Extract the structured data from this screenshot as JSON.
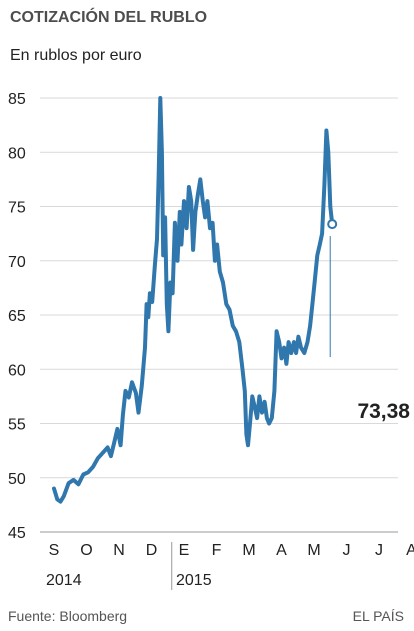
{
  "chart_data": {
    "type": "line",
    "title": "COTIZACIÓN DEL RUBLO",
    "subtitle": "En rublos por euro",
    "ylim": [
      45,
      85
    ],
    "yticks": [
      45,
      50,
      55,
      60,
      65,
      70,
      75,
      80,
      85
    ],
    "grid": true,
    "months": [
      "S",
      "O",
      "N",
      "D",
      "E",
      "F",
      "M",
      "A",
      "M",
      "J",
      "J",
      "A"
    ],
    "years": [
      "2014",
      "2015"
    ],
    "last_value_label": "73,38",
    "series": [
      {
        "color": "#2f77ad",
        "points": [
          [
            0.0,
            49.0
          ],
          [
            0.1,
            48.0
          ],
          [
            0.2,
            47.8
          ],
          [
            0.3,
            48.3
          ],
          [
            0.45,
            49.5
          ],
          [
            0.6,
            49.8
          ],
          [
            0.75,
            49.4
          ],
          [
            0.9,
            50.3
          ],
          [
            1.05,
            50.5
          ],
          [
            1.2,
            51.0
          ],
          [
            1.35,
            51.8
          ],
          [
            1.5,
            52.3
          ],
          [
            1.65,
            52.8
          ],
          [
            1.75,
            52.0
          ],
          [
            1.85,
            53.2
          ],
          [
            1.95,
            54.5
          ],
          [
            2.05,
            53.0
          ],
          [
            2.12,
            55.8
          ],
          [
            2.2,
            58.0
          ],
          [
            2.3,
            57.4
          ],
          [
            2.4,
            58.8
          ],
          [
            2.52,
            57.8
          ],
          [
            2.6,
            56.0
          ],
          [
            2.7,
            58.5
          ],
          [
            2.8,
            62.0
          ],
          [
            2.85,
            66.0
          ],
          [
            2.9,
            64.8
          ],
          [
            2.95,
            67.0
          ],
          [
            3.02,
            66.2
          ],
          [
            3.1,
            69.5
          ],
          [
            3.17,
            72.0
          ],
          [
            3.22,
            78.0
          ],
          [
            3.27,
            85.0
          ],
          [
            3.32,
            80.0
          ],
          [
            3.36,
            70.5
          ],
          [
            3.42,
            74.0
          ],
          [
            3.47,
            66.0
          ],
          [
            3.52,
            63.5
          ],
          [
            3.58,
            68.0
          ],
          [
            3.65,
            67.0
          ],
          [
            3.72,
            73.5
          ],
          [
            3.8,
            70.0
          ],
          [
            3.87,
            74.5
          ],
          [
            3.92,
            71.5
          ],
          [
            4.0,
            75.5
          ],
          [
            4.08,
            73.0
          ],
          [
            4.15,
            76.8
          ],
          [
            4.22,
            75.5
          ],
          [
            4.28,
            71.0
          ],
          [
            4.35,
            74.5
          ],
          [
            4.42,
            76.0
          ],
          [
            4.5,
            77.5
          ],
          [
            4.58,
            75.5
          ],
          [
            4.65,
            74.0
          ],
          [
            4.72,
            75.5
          ],
          [
            4.8,
            73.0
          ],
          [
            4.88,
            73.5
          ],
          [
            4.95,
            70.0
          ],
          [
            5.02,
            71.5
          ],
          [
            5.1,
            69.0
          ],
          [
            5.2,
            68.0
          ],
          [
            5.3,
            66.0
          ],
          [
            5.4,
            65.5
          ],
          [
            5.5,
            64.0
          ],
          [
            5.6,
            63.5
          ],
          [
            5.7,
            62.5
          ],
          [
            5.8,
            60.0
          ],
          [
            5.87,
            58.0
          ],
          [
            5.92,
            54.0
          ],
          [
            5.97,
            53.0
          ],
          [
            6.03,
            55.0
          ],
          [
            6.1,
            57.5
          ],
          [
            6.18,
            56.5
          ],
          [
            6.25,
            55.5
          ],
          [
            6.32,
            57.5
          ],
          [
            6.4,
            56.0
          ],
          [
            6.48,
            57.0
          ],
          [
            6.55,
            55.5
          ],
          [
            6.62,
            55.0
          ],
          [
            6.7,
            55.5
          ],
          [
            6.78,
            58.0
          ],
          [
            6.85,
            63.5
          ],
          [
            6.93,
            62.5
          ],
          [
            7.0,
            61.0
          ],
          [
            7.08,
            62.0
          ],
          [
            7.15,
            60.5
          ],
          [
            7.22,
            62.5
          ],
          [
            7.3,
            61.5
          ],
          [
            7.38,
            62.5
          ],
          [
            7.45,
            61.5
          ],
          [
            7.52,
            63.0
          ],
          [
            7.6,
            62.0
          ],
          [
            7.7,
            61.5
          ],
          [
            7.8,
            62.5
          ],
          [
            7.88,
            64.0
          ],
          [
            7.95,
            66.0
          ],
          [
            8.02,
            68.0
          ],
          [
            8.1,
            70.5
          ],
          [
            8.18,
            71.5
          ],
          [
            8.25,
            72.5
          ],
          [
            8.32,
            77.0
          ],
          [
            8.38,
            82.0
          ],
          [
            8.44,
            80.0
          ],
          [
            8.5,
            75.0
          ],
          [
            8.56,
            73.38
          ]
        ]
      }
    ]
  },
  "source": "Fuente: Bloomberg",
  "credit": "EL PAÍS"
}
